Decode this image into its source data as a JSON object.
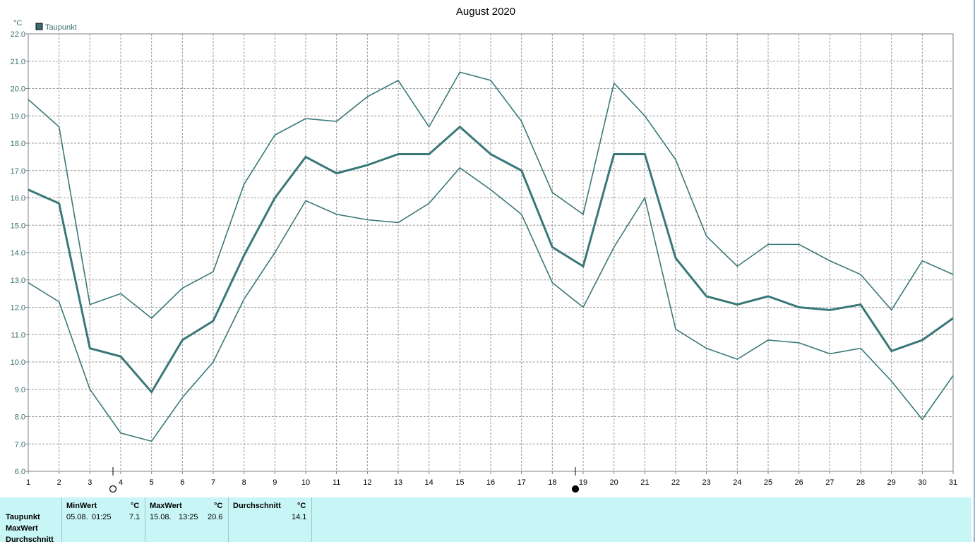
{
  "chart_data": {
    "type": "line",
    "title": "August 2020",
    "ylabel": "°C",
    "ylim": [
      6.0,
      22.0
    ],
    "yticks": [
      "6.0",
      "7.0",
      "8.0",
      "9.0",
      "10.0",
      "11.0",
      "12.0",
      "13.0",
      "14.0",
      "15.0",
      "16.0",
      "17.0",
      "18.0",
      "19.0",
      "20.0",
      "21.0",
      "22.0"
    ],
    "x": [
      1,
      2,
      3,
      4,
      5,
      6,
      7,
      8,
      9,
      10,
      11,
      12,
      13,
      14,
      15,
      16,
      17,
      18,
      19,
      20,
      21,
      22,
      23,
      24,
      25,
      26,
      27,
      28,
      29,
      30,
      31
    ],
    "xlim": [
      1,
      31
    ],
    "grid": true,
    "legend": {
      "position": "top-left",
      "entries": [
        {
          "label": "Taupunkt",
          "color": "#3a6e70"
        }
      ]
    },
    "series": [
      {
        "name": "Taupunkt",
        "kind": "max",
        "color": "#3a7878",
        "values": [
          19.6,
          18.6,
          12.1,
          12.5,
          11.6,
          12.7,
          13.3,
          16.5,
          18.3,
          18.9,
          18.8,
          19.7,
          20.3,
          18.6,
          20.6,
          20.3,
          18.8,
          16.2,
          15.4,
          20.2,
          19.0,
          17.4,
          14.6,
          13.5,
          14.3,
          14.3,
          13.7,
          13.2,
          11.9,
          13.7,
          13.2
        ]
      },
      {
        "name": "Taupunkt",
        "kind": "avg",
        "color": "#3a7878",
        "values": [
          16.3,
          15.8,
          10.5,
          10.2,
          8.9,
          10.8,
          11.5,
          13.9,
          16.0,
          17.5,
          16.9,
          17.2,
          17.6,
          17.6,
          18.6,
          17.6,
          17.0,
          14.2,
          13.5,
          17.6,
          17.6,
          13.8,
          12.4,
          12.1,
          12.4,
          12.0,
          11.9,
          12.1,
          10.4,
          10.8,
          11.6
        ]
      },
      {
        "name": "Taupunkt",
        "kind": "min",
        "color": "#3a7878",
        "values": [
          12.9,
          12.2,
          9.0,
          7.4,
          7.1,
          8.7,
          10.0,
          12.3,
          14.0,
          15.9,
          15.4,
          15.2,
          15.1,
          15.8,
          17.1,
          16.3,
          15.4,
          12.9,
          12.0,
          14.2,
          16.0,
          11.2,
          10.5,
          10.1,
          10.8,
          10.7,
          10.3,
          10.5,
          9.3,
          7.9,
          9.5
        ]
      }
    ],
    "markers": [
      {
        "x": 4,
        "symbol": "new-moon-outline"
      },
      {
        "x": 19,
        "symbol": "full-moon-filled"
      }
    ]
  },
  "stats": {
    "row_labels": [
      "Taupunkt",
      "MaxWert",
      "Durchschnitt"
    ],
    "min": {
      "header": "MinWert",
      "unit": "°C",
      "date": "05.08.",
      "time": "01:25",
      "value": "7.1"
    },
    "max": {
      "header": "MaxWert",
      "unit": "°C",
      "date": "15.08.",
      "time": "13:25",
      "value": "20.6"
    },
    "avg": {
      "header": "Durchschnitt",
      "unit": "°C",
      "value": "14.1"
    }
  }
}
